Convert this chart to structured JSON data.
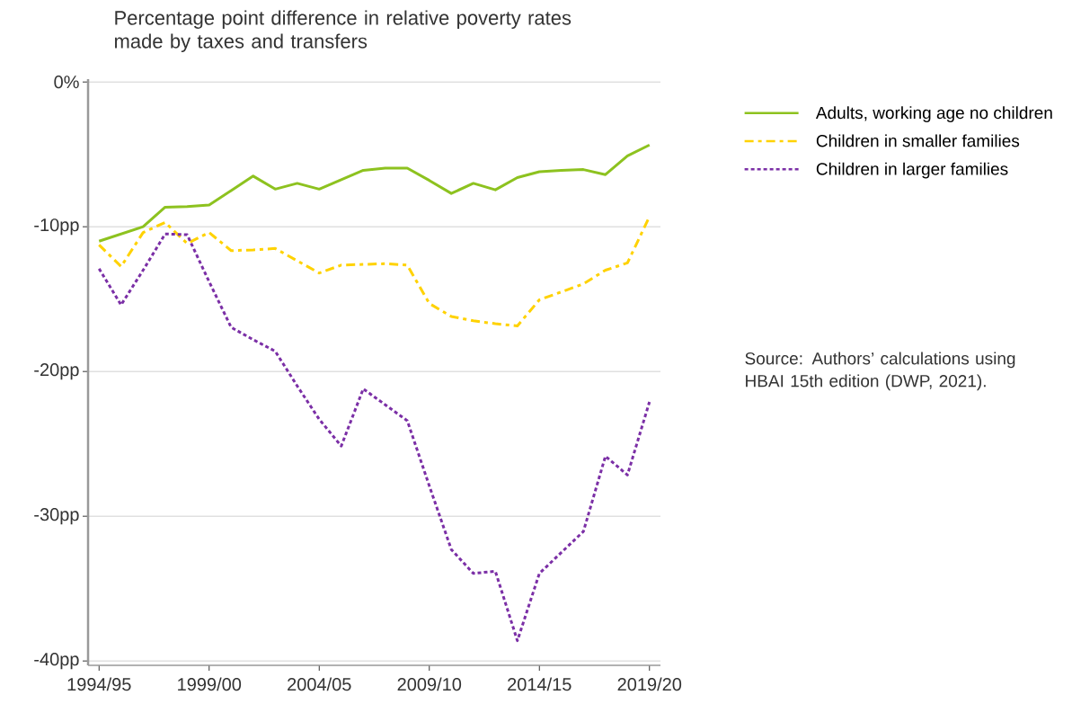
{
  "chart_data": {
    "type": "line",
    "title": "Percentage point difference in relative poverty rates made by taxes and transfers",
    "categories": [
      "1994/95",
      null,
      null,
      null,
      null,
      "1999/00",
      null,
      null,
      null,
      null,
      "2004/05",
      null,
      null,
      null,
      null,
      "2009/10",
      null,
      null,
      null,
      null,
      "2014/15",
      null,
      null,
      null,
      null,
      "2019/20"
    ],
    "ylim": [
      -40.3,
      0.2
    ],
    "yticks": [
      {
        "value": 0,
        "label": "0%"
      },
      {
        "value": -10,
        "label": "-10pp"
      },
      {
        "value": -20,
        "label": "-20pp"
      },
      {
        "value": -30,
        "label": "-30pp"
      },
      {
        "value": -40,
        "label": "-40pp"
      }
    ],
    "grid": "y",
    "legend": "right",
    "annotations": [
      "Source: Authors’ calculations using HBAI 15th edition (DWP, 2021)."
    ],
    "series": [
      {
        "name": "Adults, working age no children",
        "color": "#8dc21f",
        "line_style": "solid",
        "values": [
          -11.0,
          -10.5,
          -10.0,
          -8.65,
          -8.6,
          -8.5,
          -7.5,
          -6.5,
          -7.4,
          -7.0,
          -7.4,
          -6.75,
          -6.1,
          -5.95,
          -5.95,
          -6.8,
          -7.7,
          -7.0,
          -7.45,
          -6.6,
          -6.2,
          -6.1,
          -6.05,
          -6.4,
          -5.1,
          -4.35
        ]
      },
      {
        "name": "Children in smaller families",
        "color": "#ffd200",
        "line_style": "dashed",
        "values": [
          -11.25,
          -12.75,
          -10.4,
          -9.7,
          -11.15,
          -10.4,
          -11.65,
          -11.6,
          -11.5,
          -12.35,
          -13.2,
          -12.65,
          -12.6,
          -12.55,
          -12.65,
          -15.3,
          -16.2,
          -16.5,
          -16.7,
          -16.85,
          -15.05,
          -14.5,
          -13.95,
          -13.0,
          -12.5,
          -9.3
        ]
      },
      {
        "name": "Children in larger families",
        "color": "#7b2fa6",
        "line_style": "dotted",
        "values": [
          -12.9,
          -15.4,
          -13.0,
          -10.5,
          -10.55,
          -13.8,
          -16.95,
          -17.8,
          -18.6,
          -21.0,
          -23.3,
          -25.15,
          -21.2,
          -22.3,
          -23.4,
          -27.9,
          -32.3,
          -33.95,
          -33.8,
          -38.6,
          -33.95,
          -32.5,
          -31.05,
          -25.85,
          -27.15,
          -22.1
        ]
      }
    ]
  }
}
